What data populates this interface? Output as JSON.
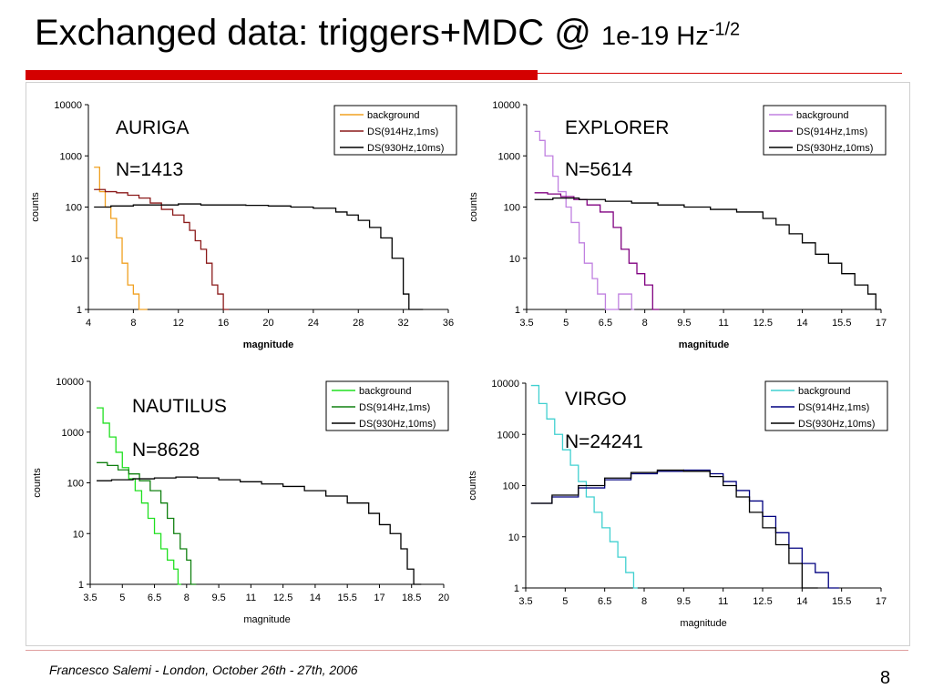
{
  "slide": {
    "title_main": "Exchanged data: triggers+MDC @",
    "title_sub": "1e-19 Hz",
    "title_sup": "-1/2",
    "footer": "Francesco Salemi - London, October 26th - 27th, 2006",
    "page_number": "8"
  },
  "colors": {
    "accent_red": "#d40000"
  },
  "chart_data": [
    {
      "type": "line",
      "detector": "AURIGA",
      "count_label": "N=1413",
      "xlabel": "magnitude",
      "ylabel": "counts",
      "xlim": [
        4,
        36
      ],
      "ylim": [
        1,
        10000
      ],
      "yscale": "log",
      "xticks": [
        4,
        8,
        12,
        16,
        20,
        24,
        28,
        32,
        36
      ],
      "xtick_labels": [
        "4",
        "8",
        "12",
        "16",
        "20",
        "24",
        "28",
        "32",
        "36"
      ],
      "yticks": [
        1,
        10,
        100,
        1000,
        10000
      ],
      "ytick_labels": [
        "1",
        "10",
        "100",
        "1000",
        "10000"
      ],
      "xlabel_bold": true,
      "legend_position": "top-right",
      "series": [
        {
          "name": "background",
          "color": "#f0a020",
          "x": [
            4.5,
            5,
            5.5,
            6,
            6.5,
            7,
            7.5,
            8,
            8.5,
            9
          ],
          "y": [
            600,
            200,
            100,
            60,
            25,
            8,
            3,
            2,
            1,
            1
          ]
        },
        {
          "name": "DS(914Hz,1ms)",
          "color": "#8b1a1a",
          "x": [
            4.5,
            5.5,
            6.5,
            7.5,
            8.5,
            9.5,
            10.5,
            11.5,
            12.5,
            13,
            13.5,
            14,
            14.5,
            15,
            15.5,
            16
          ],
          "y": [
            220,
            200,
            190,
            170,
            150,
            120,
            90,
            70,
            50,
            35,
            22,
            15,
            8,
            3,
            2,
            1
          ]
        },
        {
          "name": "DS(930Hz,10ms)",
          "color": "#000000",
          "x": [
            4.5,
            6,
            8,
            10,
            12,
            14,
            16,
            18,
            20,
            22,
            24,
            26,
            27,
            28,
            29,
            30,
            31,
            32,
            32.5,
            33
          ],
          "y": [
            100,
            105,
            110,
            110,
            115,
            110,
            110,
            108,
            105,
            100,
            95,
            80,
            70,
            55,
            40,
            25,
            10,
            2,
            1,
            1
          ]
        }
      ]
    },
    {
      "type": "line",
      "detector": "EXPLORER",
      "count_label": "N=5614",
      "xlabel": "magnitude",
      "ylabel": "counts",
      "xlim": [
        3.5,
        17
      ],
      "ylim": [
        1,
        10000
      ],
      "yscale": "log",
      "xticks": [
        3.5,
        5,
        6.5,
        8,
        9.5,
        11,
        12.5,
        14,
        15.5,
        17
      ],
      "xtick_labels": [
        "3.5",
        "5",
        "6.5",
        "8",
        "9.5",
        "11",
        "12.5",
        "14",
        "15.5",
        "17"
      ],
      "yticks": [
        1,
        10,
        100,
        1000,
        10000
      ],
      "ytick_labels": [
        "1",
        "10",
        "100",
        "1000",
        "10000"
      ],
      "xlabel_bold": true,
      "legend_position": "top-right",
      "series": [
        {
          "name": "background",
          "color": "#c080e0",
          "x": [
            3.8,
            4,
            4.2,
            4.5,
            4.7,
            5,
            5.2,
            5.5,
            5.7,
            6,
            6.2,
            6.5,
            6.7,
            7,
            7.2,
            7.5
          ],
          "y": [
            3000,
            2000,
            1000,
            400,
            200,
            100,
            50,
            20,
            8,
            4,
            2,
            1,
            1,
            2,
            2,
            1
          ]
        },
        {
          "name": "DS(914Hz,1ms)",
          "color": "#800080",
          "x": [
            3.8,
            4.3,
            4.8,
            5.3,
            5.8,
            6.3,
            6.8,
            7.1,
            7.4,
            7.7,
            8,
            8.3
          ],
          "y": [
            190,
            180,
            160,
            140,
            110,
            80,
            40,
            15,
            8,
            5,
            3,
            1
          ]
        },
        {
          "name": "DS(930Hz,10ms)",
          "color": "#000000",
          "x": [
            3.8,
            4.5,
            5.5,
            6.5,
            7.5,
            8.5,
            9.5,
            10.5,
            11.5,
            12.5,
            13,
            13.5,
            14,
            14.5,
            15,
            15.5,
            16,
            16.5,
            16.8
          ],
          "y": [
            140,
            150,
            140,
            130,
            120,
            110,
            100,
            90,
            80,
            60,
            45,
            30,
            20,
            12,
            8,
            5,
            3,
            2,
            1
          ]
        }
      ]
    },
    {
      "type": "line",
      "detector": "NAUTILUS",
      "count_label": "N=8628",
      "xlabel": "magnitude",
      "ylabel": "counts",
      "xlim": [
        3.5,
        20
      ],
      "ylim": [
        1,
        10000
      ],
      "yscale": "log",
      "xticks": [
        3.5,
        5,
        6.5,
        8,
        9.5,
        11,
        12.5,
        14,
        15.5,
        17,
        18.5,
        20
      ],
      "xtick_labels": [
        "3.5",
        "5",
        "6.5",
        "8",
        "9.5",
        "11",
        "12.5",
        "14",
        "15.5",
        "17",
        "18.5",
        "20"
      ],
      "yticks": [
        1,
        10,
        100,
        1000,
        10000
      ],
      "ytick_labels": [
        "1",
        "10",
        "100",
        "1000",
        "10000"
      ],
      "xlabel_bold": false,
      "legend_position": "top-right",
      "series": [
        {
          "name": "background",
          "color": "#20e020",
          "x": [
            3.8,
            4.1,
            4.4,
            4.7,
            5,
            5.3,
            5.6,
            5.9,
            6.2,
            6.5,
            6.8,
            7.1,
            7.4,
            7.6
          ],
          "y": [
            3000,
            1500,
            800,
            400,
            200,
            120,
            70,
            40,
            20,
            10,
            5,
            3,
            2,
            1
          ]
        },
        {
          "name": "DS(914Hz,1ms)",
          "color": "#108010",
          "x": [
            3.8,
            4.3,
            4.8,
            5.3,
            5.8,
            6.3,
            6.8,
            7.1,
            7.4,
            7.7,
            8,
            8.2
          ],
          "y": [
            250,
            220,
            180,
            150,
            110,
            70,
            40,
            20,
            10,
            5,
            3,
            1
          ]
        },
        {
          "name": "DS(930Hz,10ms)",
          "color": "#000000",
          "x": [
            3.8,
            4.5,
            5.5,
            6.5,
            7.5,
            8.5,
            9.5,
            10.5,
            11.5,
            12.5,
            13.5,
            14.5,
            15.5,
            16.5,
            17,
            17.5,
            18,
            18.3,
            18.6
          ],
          "y": [
            110,
            115,
            120,
            125,
            130,
            125,
            115,
            105,
            95,
            85,
            70,
            55,
            40,
            25,
            15,
            10,
            5,
            2,
            1
          ]
        }
      ]
    },
    {
      "type": "line",
      "detector": "VIRGO",
      "count_label": "N=24241",
      "xlabel": "magnitude",
      "ylabel": "counts",
      "xlim": [
        3.5,
        17
      ],
      "ylim": [
        1,
        10000
      ],
      "yscale": "log",
      "xticks": [
        3.5,
        5,
        6.5,
        8,
        9.5,
        11,
        12.5,
        14,
        15.5,
        17
      ],
      "xtick_labels": [
        "3.5",
        "5",
        "6.5",
        "8",
        "9.5",
        "11",
        "12.5",
        "14",
        "15.5",
        "17"
      ],
      "yticks": [
        1,
        10,
        100,
        1000,
        10000
      ],
      "ytick_labels": [
        "1",
        "10",
        "100",
        "1000",
        "10000"
      ],
      "xlabel_bold": false,
      "legend_position": "top-right",
      "series": [
        {
          "name": "background",
          "color": "#40d0d0",
          "x": [
            3.7,
            4,
            4.3,
            4.6,
            4.9,
            5.2,
            5.5,
            5.8,
            6.1,
            6.4,
            6.7,
            7,
            7.3,
            7.6
          ],
          "y": [
            9000,
            4000,
            2000,
            1000,
            500,
            250,
            120,
            60,
            30,
            15,
            8,
            4,
            2,
            1
          ]
        },
        {
          "name": "DS(914Hz,1ms)",
          "color": "#000080",
          "x": [
            3.7,
            4.5,
            5.5,
            6.5,
            7.5,
            8.5,
            9.5,
            10.5,
            11,
            11.5,
            12,
            12.5,
            13,
            13.5,
            14,
            14.5,
            15
          ],
          "y": [
            45,
            60,
            90,
            130,
            170,
            190,
            200,
            170,
            120,
            80,
            50,
            25,
            12,
            6,
            3,
            2,
            1
          ]
        },
        {
          "name": "DS(930Hz,10ms)",
          "color": "#000000",
          "x": [
            3.7,
            4.5,
            5.5,
            6.5,
            7.5,
            8.5,
            9.5,
            10.5,
            11,
            11.5,
            12,
            12.5,
            13,
            13.5,
            14,
            14.2
          ],
          "y": [
            45,
            65,
            100,
            140,
            180,
            200,
            190,
            150,
            100,
            60,
            30,
            15,
            7,
            3,
            1,
            1
          ]
        }
      ]
    }
  ]
}
